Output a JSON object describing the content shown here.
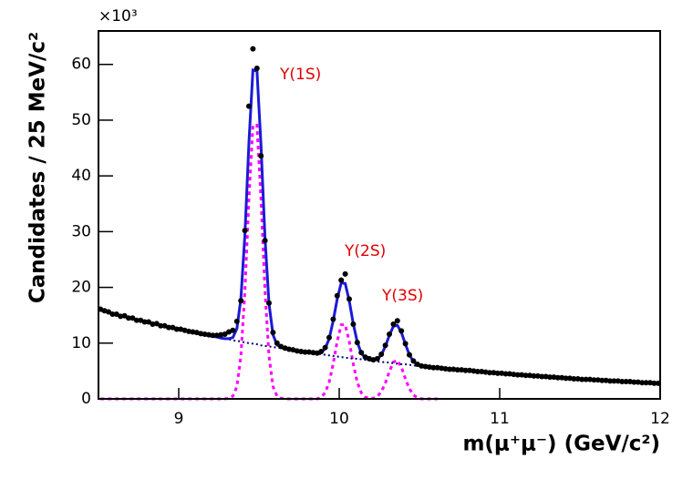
{
  "chart_data": {
    "type": "line",
    "xlabel": "m(μ⁺μ⁻) (GeV/c²)",
    "ylabel": "Candidates / 25 MeV/c²",
    "y_multiplier": "×10³",
    "annotations": [
      "Υ(1S)",
      "Υ(2S)",
      "Υ(3S)"
    ],
    "xlim": [
      8.5,
      12
    ],
    "xticks": [
      9,
      10,
      11,
      12
    ],
    "ylim": [
      0,
      66
    ],
    "yticks": [
      0,
      10,
      20,
      30,
      40,
      50,
      60
    ],
    "x": [
      8.5125,
      8.5375,
      8.5625,
      8.5875,
      8.6125,
      8.6375,
      8.6625,
      8.6875,
      8.7125,
      8.7375,
      8.7625,
      8.7875,
      8.8125,
      8.8375,
      8.8625,
      8.8875,
      8.9125,
      8.9375,
      8.9625,
      8.9875,
      9.0125,
      9.0375,
      9.0625,
      9.0875,
      9.1125,
      9.1375,
      9.1625,
      9.1875,
      9.2125,
      9.2375,
      9.2625,
      9.2875,
      9.3125,
      9.3375,
      9.3625,
      9.3875,
      9.4125,
      9.4375,
      9.4625,
      9.4875,
      9.5125,
      9.5375,
      9.5625,
      9.5875,
      9.6125,
      9.6375,
      9.6625,
      9.6875,
      9.7125,
      9.7375,
      9.7625,
      9.7875,
      9.8125,
      9.8375,
      9.8625,
      9.8875,
      9.9125,
      9.9375,
      9.9625,
      9.9875,
      10.0125,
      10.0375,
      10.0625,
      10.0875,
      10.1125,
      10.1375,
      10.1625,
      10.1875,
      10.2125,
      10.2375,
      10.2625,
      10.2875,
      10.3125,
      10.3375,
      10.3625,
      10.3875,
      10.4125,
      10.4375,
      10.4625,
      10.4875,
      10.5125,
      10.5375,
      10.5625,
      10.5875,
      10.6125,
      10.6375,
      10.6625,
      10.6875,
      10.7125,
      10.7375,
      10.7625,
      10.7875,
      10.8125,
      10.8375,
      10.8625,
      10.8875,
      10.9125,
      10.9375,
      10.9625,
      10.9875,
      11.0125,
      11.0375,
      11.0625,
      11.0875,
      11.1125,
      11.1375,
      11.1625,
      11.1875,
      11.2125,
      11.2375,
      11.2625,
      11.2875,
      11.3125,
      11.3375,
      11.3625,
      11.3875,
      11.4125,
      11.4375,
      11.4625,
      11.4875,
      11.5125,
      11.5375,
      11.5625,
      11.5875,
      11.6125,
      11.6375,
      11.6625,
      11.6875,
      11.7125,
      11.7375,
      11.7625,
      11.7875,
      11.8125,
      11.8375,
      11.8625,
      11.8875,
      11.9125,
      11.9375,
      11.9625,
      11.9875
    ],
    "series": [
      {
        "color": "#000000",
        "style": "markers",
        "values": [
          16.1,
          15.8,
          15.6,
          15.2,
          15.2,
          14.8,
          14.9,
          14.5,
          14.5,
          14.1,
          14.1,
          13.8,
          13.8,
          13.4,
          13.5,
          13.1,
          13.1,
          12.8,
          12.8,
          12.5,
          12.5,
          12.3,
          12.1,
          12.0,
          11.9,
          11.7,
          11.6,
          11.5,
          11.4,
          11.4,
          11.5,
          11.6,
          12.0,
          12.3,
          13.9,
          17.6,
          30.2,
          52.5,
          62.8,
          59.3,
          43.6,
          28.4,
          17.2,
          11.9,
          10.0,
          9.4,
          9.1,
          8.9,
          8.8,
          8.6,
          8.5,
          8.4,
          8.4,
          8.3,
          8.2,
          8.5,
          9.2,
          11.0,
          14.3,
          18.5,
          21.3,
          22.4,
          17.9,
          13.4,
          10.1,
          8.3,
          7.5,
          7.2,
          7.0,
          7.2,
          8.0,
          9.6,
          11.6,
          13.4,
          14.0,
          12.2,
          9.9,
          7.9,
          6.8,
          6.2,
          5.9,
          5.8,
          5.7,
          5.6,
          5.6,
          5.5,
          5.4,
          5.3,
          5.3,
          5.2,
          5.2,
          5.1,
          5.1,
          5.0,
          4.9,
          4.9,
          4.8,
          4.7,
          4.7,
          4.6,
          4.6,
          4.5,
          4.5,
          4.4,
          4.3,
          4.3,
          4.2,
          4.2,
          4.1,
          4.1,
          4.0,
          4.0,
          3.9,
          3.9,
          3.8,
          3.8,
          3.7,
          3.7,
          3.6,
          3.6,
          3.5,
          3.5,
          3.5,
          3.4,
          3.4,
          3.3,
          3.3,
          3.2,
          3.2,
          3.2,
          3.1,
          3.1,
          3.1,
          3.0,
          3.0,
          2.9,
          2.9,
          2.9,
          2.8,
          2.8
        ]
      },
      {
        "color": "#1a1ad6",
        "style": "solid",
        "values": [
          15.9,
          15.7,
          15.5,
          15.3,
          15.1,
          14.9,
          14.8,
          14.6,
          14.4,
          14.2,
          14.0,
          13.9,
          13.7,
          13.5,
          13.4,
          13.2,
          13.0,
          12.9,
          12.7,
          12.5,
          12.4,
          12.2,
          12.1,
          11.9,
          11.8,
          11.6,
          11.5,
          11.3,
          11.2,
          11.1,
          10.9,
          10.8,
          10.8,
          11.0,
          12.6,
          18.0,
          29.5,
          46.0,
          59.0,
          58.9,
          45.6,
          28.9,
          17.1,
          11.5,
          9.7,
          9.2,
          9.0,
          8.8,
          8.7,
          8.6,
          8.5,
          8.4,
          8.3,
          8.2,
          8.1,
          8.3,
          9.0,
          10.8,
          14.0,
          17.9,
          20.8,
          20.7,
          17.6,
          13.5,
          10.2,
          8.2,
          7.3,
          7.0,
          6.9,
          7.1,
          7.9,
          9.4,
          11.4,
          13.0,
          13.2,
          11.9,
          9.8,
          7.9,
          6.7,
          6.1,
          5.9,
          5.8,
          5.7,
          5.6,
          5.6,
          5.5,
          5.4,
          5.4,
          5.3,
          5.2,
          5.2,
          5.1,
          5.0,
          5.0,
          4.9,
          4.8,
          4.8,
          4.7,
          4.7,
          4.6,
          4.6,
          4.5,
          4.4,
          4.4,
          4.3,
          4.3,
          4.2,
          4.2,
          4.1,
          4.1,
          4.0,
          4.0,
          3.9,
          3.9,
          3.8,
          3.8,
          3.7,
          3.7,
          3.6,
          3.6,
          3.5,
          3.5,
          3.5,
          3.4,
          3.4,
          3.3,
          3.3,
          3.2,
          3.2,
          3.2,
          3.1,
          3.1,
          3.1,
          3.0,
          3.0,
          2.9,
          2.9,
          2.9,
          2.8,
          2.8
        ]
      },
      {
        "color": "#00007a",
        "style": "dotted",
        "values": [
          15.9,
          15.7,
          15.5,
          15.3,
          15.1,
          14.9,
          14.8,
          14.6,
          14.4,
          14.2,
          14.0,
          13.9,
          13.7,
          13.5,
          13.4,
          13.2,
          13.0,
          12.9,
          12.7,
          12.5,
          12.4,
          12.2,
          12.1,
          11.9,
          11.8,
          11.6,
          11.5,
          11.3,
          11.2,
          11.1,
          10.9,
          10.8,
          10.7,
          10.5,
          10.4,
          10.3,
          10.1,
          10.0,
          9.9,
          9.8,
          9.6,
          9.5,
          9.4,
          9.3,
          9.2,
          9.1,
          9.0,
          8.8,
          8.7,
          8.6,
          8.5,
          8.4,
          8.3,
          8.2,
          8.1,
          8.0,
          7.9,
          7.8,
          7.7,
          7.6,
          7.5,
          7.4,
          7.3,
          7.2,
          7.2,
          7.1,
          7.0,
          6.9,
          6.8,
          6.7,
          6.6,
          6.6,
          6.5,
          6.4,
          6.3,
          6.2,
          6.2,
          6.1,
          6.0,
          5.9,
          5.9,
          5.8,
          5.7,
          5.6,
          5.6,
          5.5,
          5.4,
          5.4,
          5.3,
          5.2,
          5.2,
          5.1,
          5.0,
          5.0,
          4.9,
          4.8,
          4.8,
          4.7,
          4.7,
          4.6,
          4.6,
          4.5,
          4.4,
          4.4,
          4.3,
          4.3,
          4.2,
          4.2,
          4.1,
          4.1,
          4.0,
          4.0,
          3.9,
          3.9,
          3.8,
          3.8,
          3.7,
          3.7,
          3.6,
          3.6,
          3.5,
          3.5,
          3.5,
          3.4,
          3.4,
          3.3,
          3.3,
          3.2,
          3.2,
          3.2,
          3.1,
          3.1,
          3.1,
          3.0,
          3.0,
          2.9,
          2.9,
          2.9,
          2.8,
          2.8
        ]
      },
      {
        "color": "#ff00ff",
        "style": "dashed",
        "values": [
          0,
          0,
          0,
          0,
          0,
          0,
          0,
          0,
          0,
          0,
          0,
          0,
          0,
          0,
          0,
          0,
          0,
          0,
          0,
          0,
          0,
          0,
          0,
          0,
          0,
          0,
          0,
          0,
          0,
          0,
          0,
          0,
          0.1,
          0.5,
          2.2,
          7.7,
          19.4,
          36.0,
          49.1,
          49.1,
          36.0,
          19.4,
          7.7,
          2.2,
          0.5,
          0.1,
          0,
          0,
          0,
          0,
          0,
          0,
          0,
          0,
          0,
          0.3,
          1.1,
          3.0,
          6.3,
          10.3,
          13.3,
          13.3,
          10.3,
          6.3,
          3.0,
          1.1,
          0.3,
          0.1,
          0.1,
          0.4,
          1.3,
          2.8,
          4.9,
          6.6,
          6.9,
          5.7,
          3.6,
          1.8,
          0.7,
          0.2,
          0,
          0,
          0,
          0,
          0,
          null,
          null,
          null,
          null,
          null,
          null,
          null,
          null,
          null,
          null,
          null,
          null,
          null,
          null,
          null,
          null,
          null,
          null,
          null,
          null,
          null,
          null,
          null,
          null,
          null,
          null,
          null,
          null,
          null,
          null,
          null,
          null,
          null,
          null,
          null,
          null,
          null,
          null,
          null,
          null,
          null,
          null,
          null,
          null,
          null,
          null,
          null,
          null,
          null,
          null,
          null,
          null,
          null,
          null,
          null
        ]
      }
    ]
  }
}
